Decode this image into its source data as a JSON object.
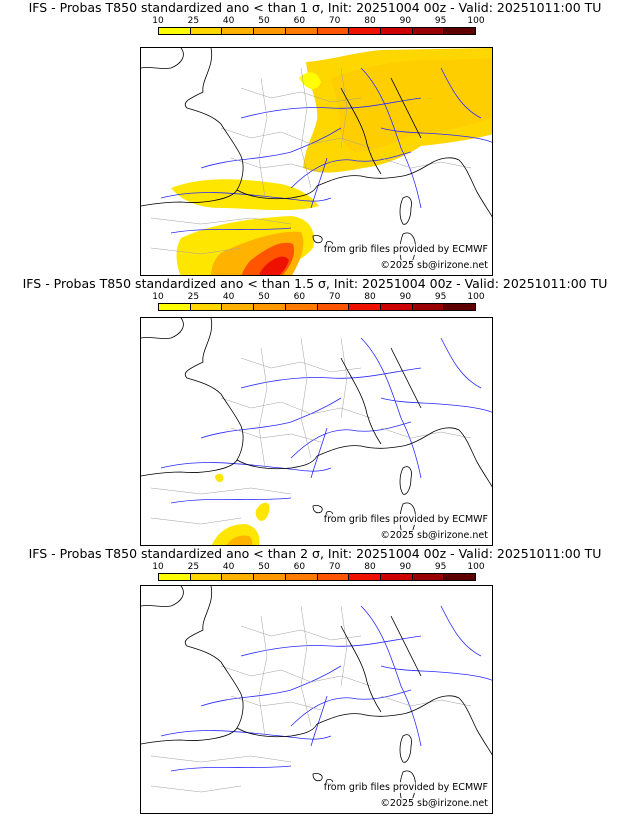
{
  "panels": [
    {
      "title": "IFS - Probas T850  standardized ano < than 1 σ, Init: 20251004 00z - Valid: 20251011:00 TU",
      "credit_source": "from grib files provided by ECMWF",
      "credit_copyright": "©2025 sb@irizone.net"
    },
    {
      "title": "IFS - Probas T850  standardized ano < than 1.5 σ, Init: 20251004 00z - Valid: 20251011:00 TU",
      "credit_source": "from grib files provided by ECMWF",
      "credit_copyright": "©2025 sb@irizone.net"
    },
    {
      "title": "IFS - Probas T850  standardized ano < than 2 σ, Init: 20251004 00z - Valid: 20251011:00 TU",
      "credit_source": "from grib files provided by ECMWF",
      "credit_copyright": "©2025 sb@irizone.net"
    }
  ],
  "legend": {
    "ticks": [
      "10",
      "25",
      "40",
      "50",
      "60",
      "70",
      "80",
      "90",
      "95",
      "100"
    ],
    "colors": [
      "#ffff00",
      "#ffd700",
      "#ffb300",
      "#ff9900",
      "#ff7b00",
      "#ff5500",
      "#ee1100",
      "#cc0000",
      "#990000",
      "#5c0000"
    ]
  },
  "colors": {
    "rivers": "#2a2aff",
    "borders": "#000000",
    "admin": "#a0a0a0",
    "sea": "#ffffff"
  }
}
